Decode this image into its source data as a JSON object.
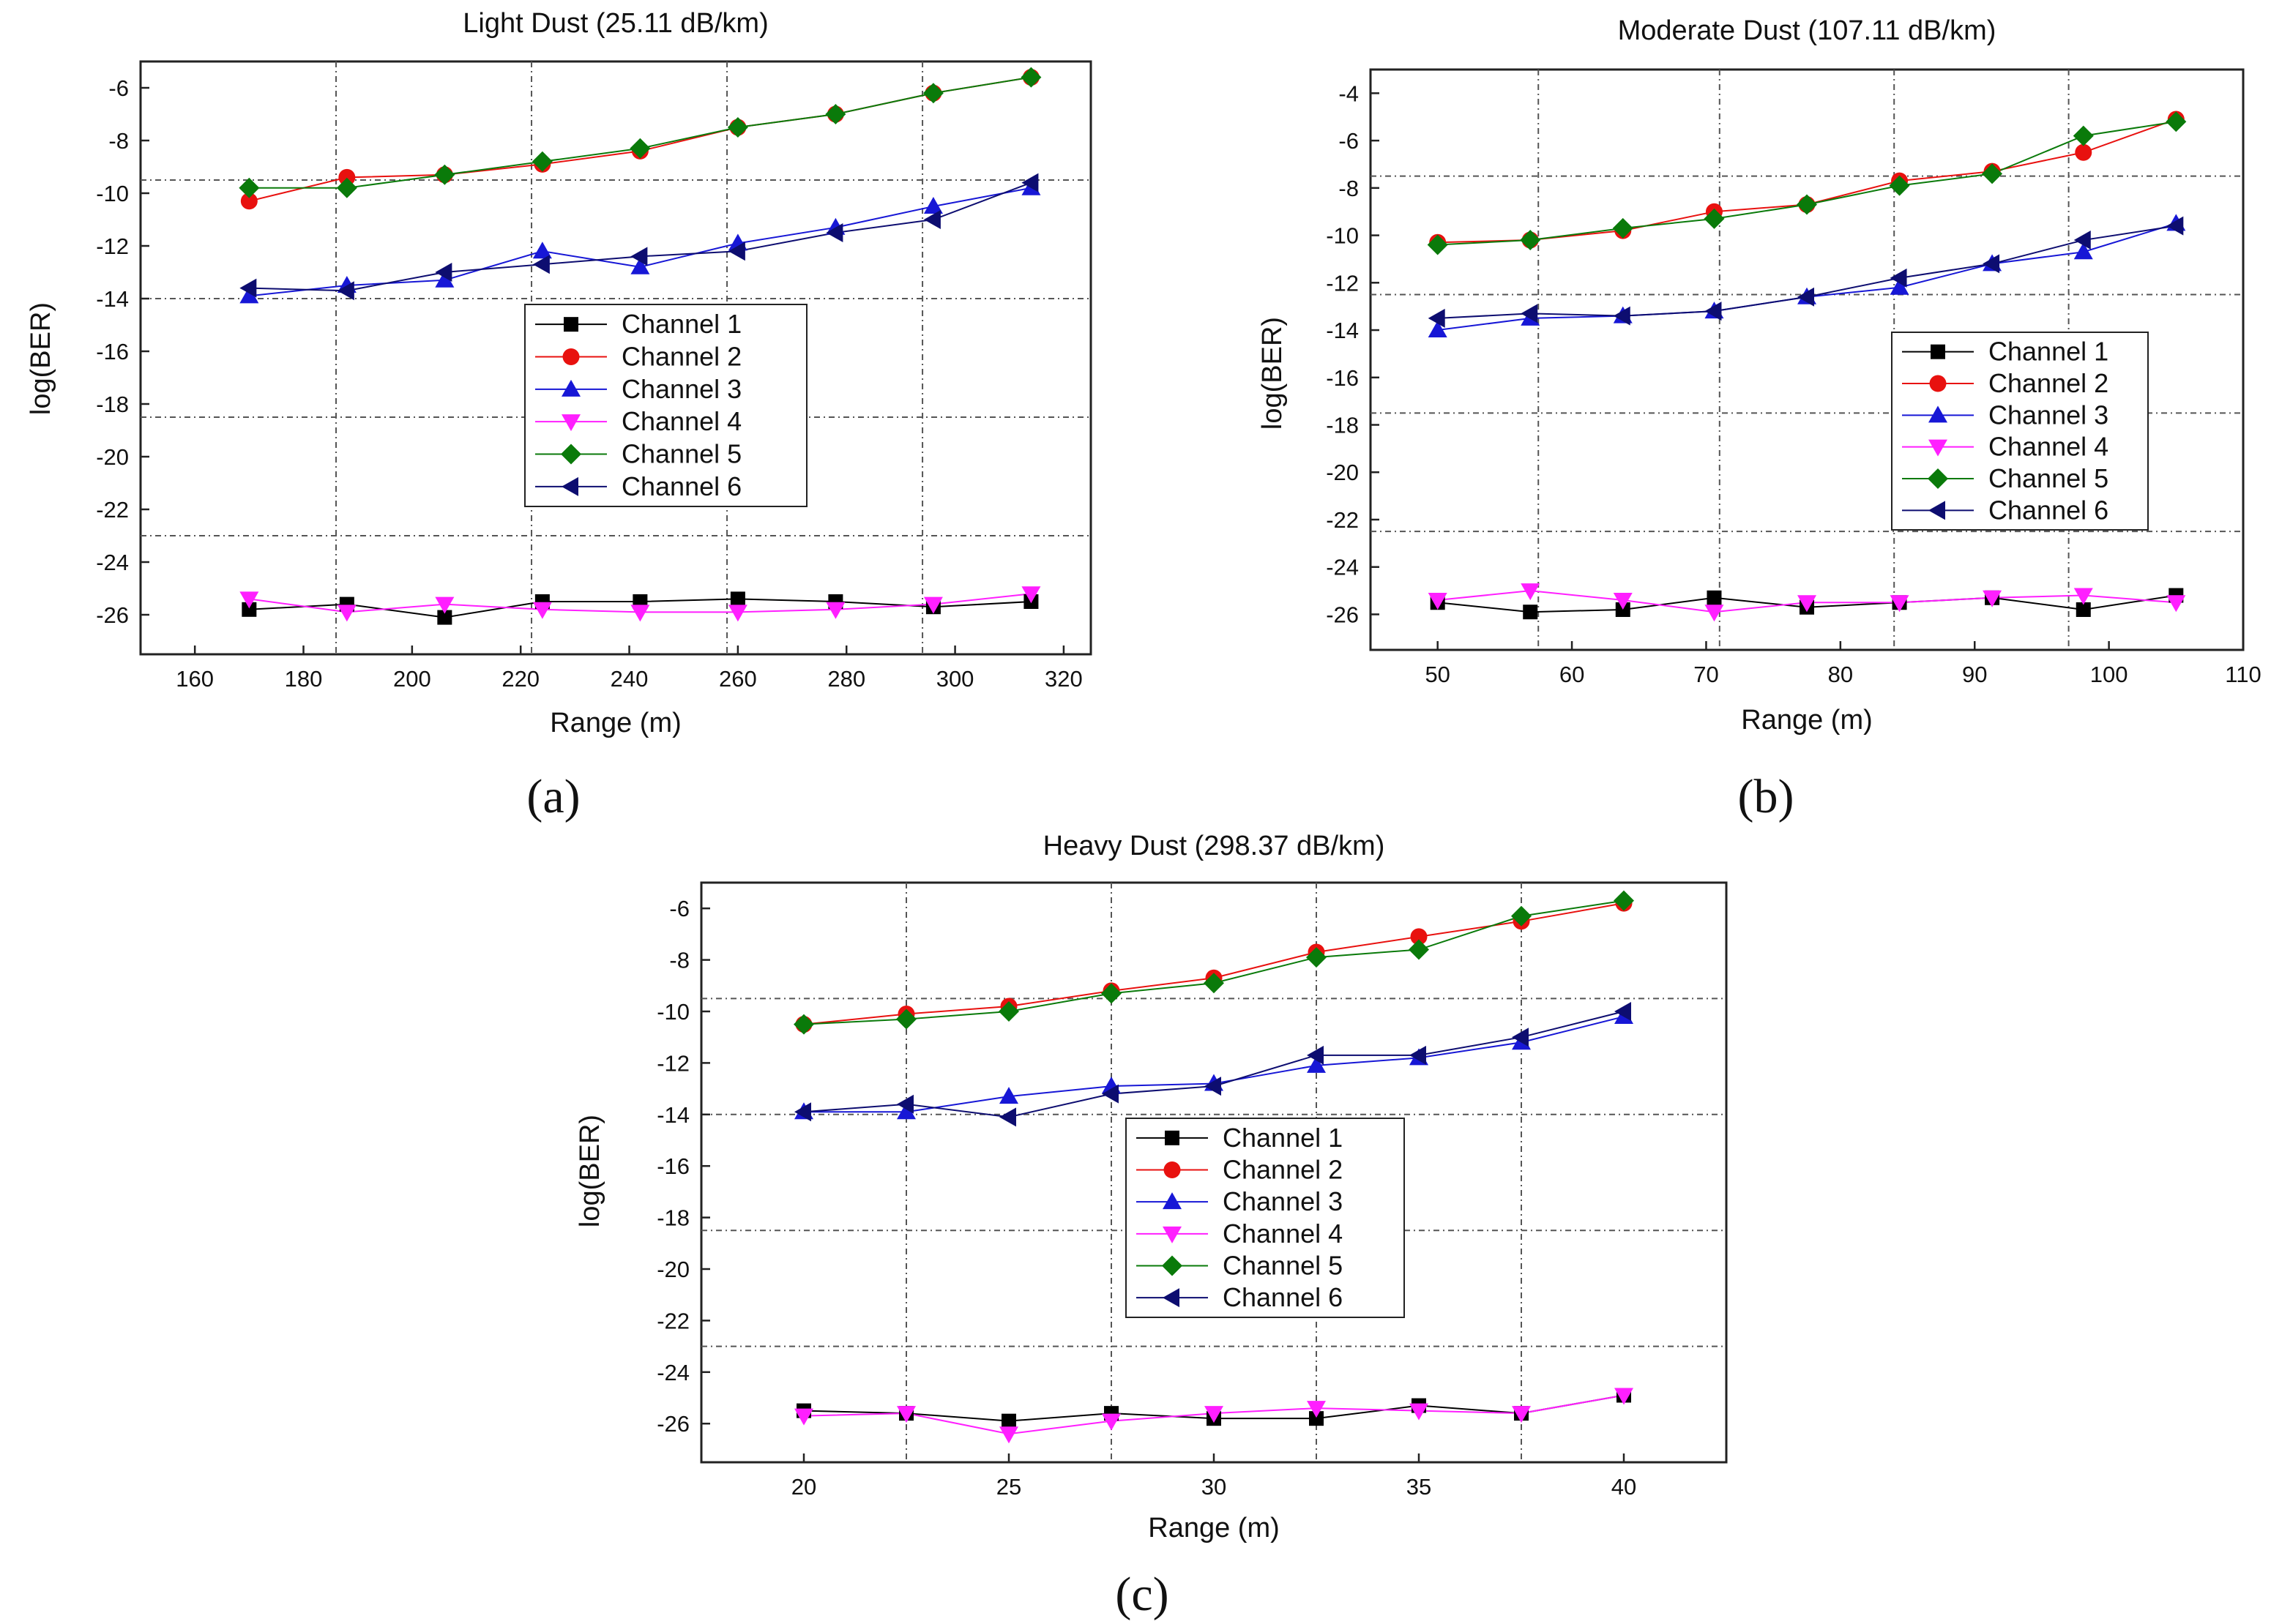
{
  "colors": {
    "Channel 1": "#000000",
    "Channel 2": "#e8110f",
    "Channel 3": "#1717d6",
    "Channel 4": "#ff1fff",
    "Channel 5": "#0a7a0a",
    "Channel 6": "#0d0d70"
  },
  "chart_data": [
    {
      "type": "line",
      "panel_label": "(a)",
      "title": "Light Dust (25.11 dB/km)",
      "xlabel": "Range (m)",
      "ylabel": "log(BER)",
      "xlim": [
        150,
        325
      ],
      "ylim": [
        -27.5,
        -5
      ],
      "xticks": [
        160,
        180,
        200,
        220,
        240,
        260,
        280,
        300,
        320
      ],
      "yticks": [
        -6,
        -8,
        -10,
        -12,
        -14,
        -16,
        -18,
        -20,
        -22,
        -24,
        -26
      ],
      "grid_x": [
        186,
        222,
        258,
        294
      ],
      "grid_y": [
        -9.5,
        -14,
        -18.5,
        -23
      ],
      "legend": "center-right",
      "x": [
        170,
        188,
        206,
        224,
        242,
        260,
        278,
        296,
        314
      ],
      "series": [
        {
          "name": "Channel 1",
          "marker": "square",
          "values": [
            -25.8,
            -25.6,
            -26.1,
            -25.5,
            -25.5,
            -25.4,
            -25.5,
            -25.7,
            -25.5
          ]
        },
        {
          "name": "Channel 2",
          "marker": "circle",
          "values": [
            -10.3,
            -9.4,
            -9.3,
            -8.9,
            -8.4,
            -7.5,
            -7.0,
            -6.2,
            -5.6
          ]
        },
        {
          "name": "Channel 3",
          "marker": "triangle-up",
          "values": [
            -13.9,
            -13.5,
            -13.3,
            -12.2,
            -12.8,
            -11.9,
            -11.3,
            -10.5,
            -9.8
          ]
        },
        {
          "name": "Channel 4",
          "marker": "triangle-down",
          "values": [
            -25.4,
            -25.9,
            -25.6,
            -25.8,
            -25.9,
            -25.9,
            -25.8,
            -25.6,
            -25.2
          ]
        },
        {
          "name": "Channel 5",
          "marker": "diamond",
          "values": [
            -9.8,
            -9.8,
            -9.3,
            -8.8,
            -8.3,
            -7.5,
            -7.0,
            -6.2,
            -5.6
          ]
        },
        {
          "name": "Channel 6",
          "marker": "triangle-left",
          "values": [
            -13.6,
            -13.7,
            -13.0,
            -12.7,
            -12.4,
            -12.2,
            -11.5,
            -11.0,
            -9.6
          ]
        }
      ]
    },
    {
      "type": "line",
      "panel_label": "(b)",
      "title": "Moderate Dust (107.11 dB/km)",
      "xlabel": "Range (m)",
      "ylabel": "log(BER)",
      "xlim": [
        45,
        110
      ],
      "ylim": [
        -27.5,
        -3
      ],
      "xticks": [
        50,
        60,
        70,
        80,
        90,
        100,
        110
      ],
      "yticks": [
        -4,
        -6,
        -8,
        -10,
        -12,
        -14,
        -16,
        -18,
        -20,
        -22,
        -24,
        -26
      ],
      "grid_x": [
        57.5,
        71,
        84,
        97
      ],
      "grid_y": [
        -7.5,
        -12.5,
        -17.5,
        -22.5
      ],
      "legend": "center-right",
      "x": [
        50,
        56.9,
        63.8,
        70.6,
        77.5,
        84.4,
        91.3,
        98.1,
        105
      ],
      "series": [
        {
          "name": "Channel 1",
          "marker": "square",
          "values": [
            -25.5,
            -25.9,
            -25.8,
            -25.3,
            -25.7,
            -25.5,
            -25.3,
            -25.8,
            -25.2
          ]
        },
        {
          "name": "Channel 2",
          "marker": "circle",
          "values": [
            -10.3,
            -10.2,
            -9.8,
            -9.0,
            -8.7,
            -7.7,
            -7.3,
            -6.5,
            -5.1
          ]
        },
        {
          "name": "Channel 3",
          "marker": "triangle-up",
          "values": [
            -14.0,
            -13.5,
            -13.4,
            -13.2,
            -12.6,
            -12.2,
            -11.2,
            -10.7,
            -9.5
          ]
        },
        {
          "name": "Channel 4",
          "marker": "triangle-down",
          "values": [
            -25.4,
            -25.0,
            -25.4,
            -25.9,
            -25.5,
            -25.5,
            -25.3,
            -25.2,
            -25.5
          ]
        },
        {
          "name": "Channel 5",
          "marker": "diamond",
          "values": [
            -10.4,
            -10.2,
            -9.7,
            -9.3,
            -8.7,
            -7.9,
            -7.4,
            -5.8,
            -5.2
          ]
        },
        {
          "name": "Channel 6",
          "marker": "triangle-left",
          "values": [
            -13.5,
            -13.3,
            -13.4,
            -13.2,
            -12.6,
            -11.8,
            -11.2,
            -10.2,
            -9.6
          ]
        }
      ]
    },
    {
      "type": "line",
      "panel_label": "(c)",
      "title": "Heavy Dust (298.37 dB/km)",
      "xlabel": "Range (m)",
      "ylabel": "log(BER)",
      "xlim": [
        17.5,
        42.5
      ],
      "ylim": [
        -27.5,
        -5
      ],
      "xticks": [
        20,
        25,
        30,
        35,
        40
      ],
      "yticks": [
        -6,
        -8,
        -10,
        -12,
        -14,
        -16,
        -18,
        -20,
        -22,
        -24,
        -26
      ],
      "grid_x": [
        22.5,
        27.5,
        32.5,
        37.5
      ],
      "grid_y": [
        -9.5,
        -14,
        -18.5,
        -23
      ],
      "legend": "center-right",
      "x": [
        20,
        22.5,
        25,
        27.5,
        30,
        32.5,
        35,
        37.5,
        40
      ],
      "series": [
        {
          "name": "Channel 1",
          "marker": "square",
          "values": [
            -25.5,
            -25.6,
            -25.9,
            -25.6,
            -25.8,
            -25.8,
            -25.3,
            -25.6,
            -24.9
          ]
        },
        {
          "name": "Channel 2",
          "marker": "circle",
          "values": [
            -10.5,
            -10.1,
            -9.8,
            -9.2,
            -8.7,
            -7.7,
            -7.1,
            -6.5,
            -5.8
          ]
        },
        {
          "name": "Channel 3",
          "marker": "triangle-up",
          "values": [
            -13.9,
            -13.9,
            -13.3,
            -12.9,
            -12.8,
            -12.1,
            -11.8,
            -11.2,
            -10.2
          ]
        },
        {
          "name": "Channel 4",
          "marker": "triangle-down",
          "values": [
            -25.7,
            -25.6,
            -26.4,
            -25.9,
            -25.6,
            -25.4,
            -25.5,
            -25.6,
            -24.9
          ]
        },
        {
          "name": "Channel 5",
          "marker": "diamond",
          "values": [
            -10.5,
            -10.3,
            -10.0,
            -9.3,
            -8.9,
            -7.9,
            -7.6,
            -6.3,
            -5.7
          ]
        },
        {
          "name": "Channel 6",
          "marker": "triangle-left",
          "values": [
            -13.9,
            -13.6,
            -14.1,
            -13.2,
            -12.9,
            -11.7,
            -11.7,
            -11.0,
            -10.0
          ]
        }
      ]
    }
  ]
}
